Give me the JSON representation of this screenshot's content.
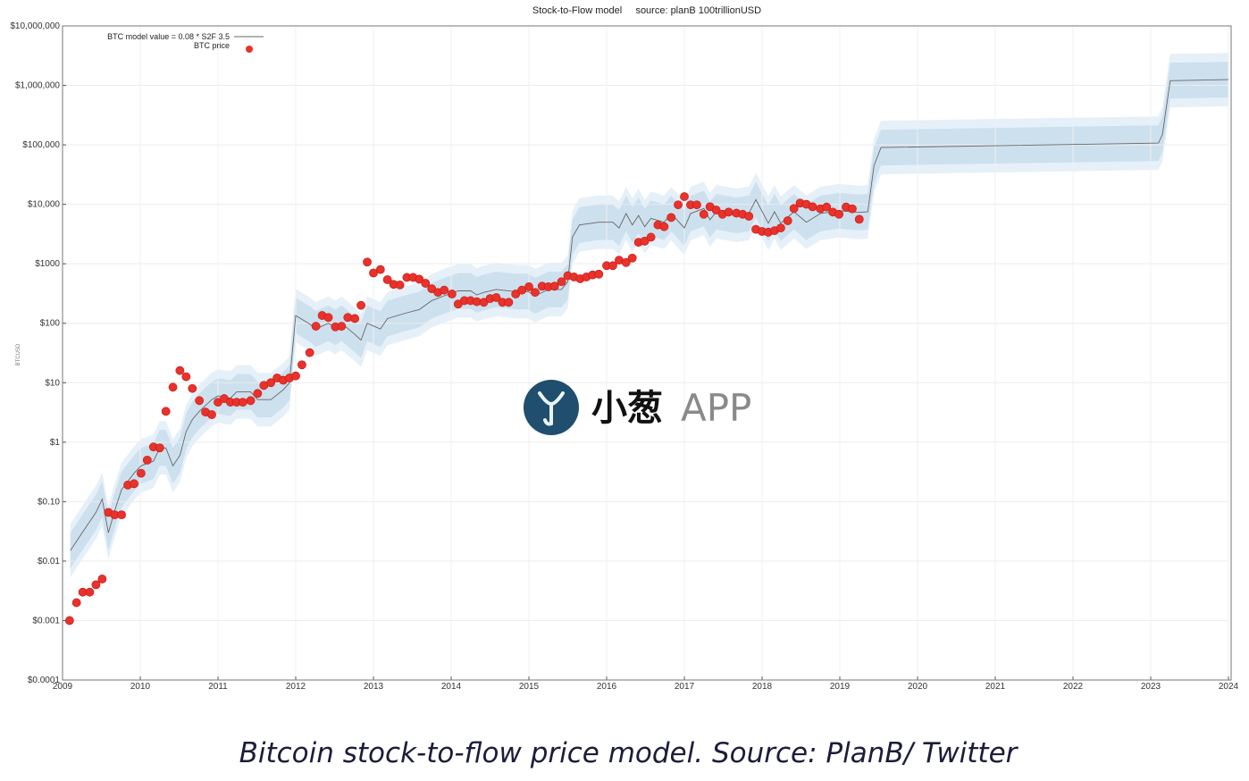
{
  "chart_data": {
    "type": "scatter",
    "title": "Stock-to-Flow model     source: planB 100trillionUSD",
    "y_label": "BTCUSD",
    "log_y": true,
    "grid": true,
    "legend": "top-left",
    "xlim": [
      2009,
      2024
    ],
    "xticks": [
      2009,
      2010,
      2011,
      2012,
      2013,
      2014,
      2015,
      2016,
      2017,
      2018,
      2019,
      2020,
      2021,
      2022,
      2023,
      2024
    ],
    "ylim": [
      0.0001,
      10000000
    ],
    "yticks": [
      {
        "value": 0.0001,
        "label": "$0.0001"
      },
      {
        "value": 0.001,
        "label": "$0.001"
      },
      {
        "value": 0.01,
        "label": "$0.01"
      },
      {
        "value": 0.1,
        "label": "$0.10"
      },
      {
        "value": 1,
        "label": "$1"
      },
      {
        "value": 10,
        "label": "$10"
      },
      {
        "value": 100,
        "label": "$100"
      },
      {
        "value": 1000,
        "label": "$1000"
      },
      {
        "value": 10000,
        "label": "$10,000"
      },
      {
        "value": 100000,
        "label": "$100,000"
      },
      {
        "value": 1000000,
        "label": "$1,000,000"
      },
      {
        "value": 10000000,
        "label": "$10,000,000"
      }
    ],
    "bands": [
      {
        "sigma_decades": 0.45,
        "color": "#e6f0f9"
      },
      {
        "sigma_decades": 0.3,
        "color": "#cde0ee"
      }
    ],
    "series": [
      {
        "name": "BTC model value = 0.08 * S2F  3.5",
        "style": "line",
        "color": "#666666",
        "x": [
          2009.1,
          2009.26,
          2009.43,
          2009.51,
          2009.59,
          2009.67,
          2009.76,
          2009.92,
          2010.01,
          2010.17,
          2010.25,
          2010.33,
          2010.42,
          2010.51,
          2010.59,
          2010.67,
          2010.76,
          2010.92,
          2011.0,
          2011.16,
          2011.24,
          2011.42,
          2011.51,
          2011.68,
          2011.84,
          2011.92,
          2012.0,
          2012.18,
          2012.26,
          2012.42,
          2012.51,
          2012.59,
          2012.76,
          2012.84,
          2012.92,
          2013.09,
          2013.18,
          2013.43,
          2013.59,
          2013.75,
          2013.91,
          2014.09,
          2014.25,
          2014.33,
          2014.42,
          2014.58,
          2014.83,
          2014.99,
          2015.08,
          2015.25,
          2015.42,
          2015.5,
          2015.56,
          2015.65,
          2015.9,
          2016.08,
          2016.16,
          2016.25,
          2016.33,
          2016.41,
          2016.49,
          2016.57,
          2016.74,
          2016.83,
          2017.0,
          2017.08,
          2017.25,
          2017.33,
          2017.41,
          2017.67,
          2017.83,
          2017.92,
          2018.08,
          2018.16,
          2018.24,
          2018.41,
          2018.57,
          2018.75,
          2018.99,
          2019.25,
          2019.36,
          2019.44,
          2019.53,
          2023.1,
          2023.15,
          2023.25,
          2024.0
        ],
        "values": [
          0.015,
          0.031,
          0.066,
          0.11,
          0.03,
          0.07,
          0.16,
          0.3,
          0.4,
          0.48,
          0.8,
          0.8,
          0.4,
          0.6,
          1.5,
          2.4,
          3.3,
          5.2,
          6,
          5.5,
          7,
          7,
          5.2,
          5.2,
          7.6,
          10,
          135,
          97,
          80,
          100,
          85,
          100,
          65,
          52,
          100,
          80,
          120,
          150,
          170,
          240,
          290,
          350,
          350,
          300,
          330,
          370,
          340,
          340,
          290,
          370,
          370,
          500,
          2800,
          4500,
          5000,
          5000,
          4000,
          7000,
          4500,
          6500,
          4200,
          5800,
          5000,
          7000,
          4000,
          7000,
          8500,
          5500,
          7500,
          6500,
          7000,
          12000,
          4800,
          7500,
          4800,
          7500,
          5000,
          7000,
          7800,
          7300,
          7500,
          45000,
          90000,
          107000,
          150000,
          1200000,
          1250000
        ]
      },
      {
        "name": "BTC price",
        "style": "dots",
        "color": "#e8322b",
        "x": [
          2009.09,
          2009.18,
          2009.26,
          2009.35,
          2009.43,
          2009.51,
          2009.59,
          2009.67,
          2009.76,
          2009.84,
          2009.92,
          2010.01,
          2010.09,
          2010.17,
          2010.25,
          2010.33,
          2010.42,
          2010.51,
          2010.59,
          2010.67,
          2010.76,
          2010.84,
          2010.92,
          2011.0,
          2011.08,
          2011.16,
          2011.24,
          2011.32,
          2011.42,
          2011.51,
          2011.59,
          2011.68,
          2011.76,
          2011.84,
          2011.92,
          2012.0,
          2012.08,
          2012.18,
          2012.26,
          2012.34,
          2012.42,
          2012.51,
          2012.59,
          2012.67,
          2012.76,
          2012.84,
          2012.92,
          2013.0,
          2013.09,
          2013.18,
          2013.26,
          2013.34,
          2013.43,
          2013.51,
          2013.59,
          2013.67,
          2013.75,
          2013.83,
          2013.91,
          2014.01,
          2014.09,
          2014.17,
          2014.25,
          2014.33,
          2014.42,
          2014.5,
          2014.58,
          2014.66,
          2014.74,
          2014.83,
          2014.91,
          2015.0,
          2015.08,
          2015.17,
          2015.25,
          2015.33,
          2015.42,
          2015.5,
          2015.58,
          2015.66,
          2015.74,
          2015.82,
          2015.9,
          2016.0,
          2016.08,
          2016.16,
          2016.25,
          2016.33,
          2016.41,
          2016.49,
          2016.57,
          2016.66,
          2016.74,
          2016.83,
          2016.92,
          2017.0,
          2017.08,
          2017.16,
          2017.25,
          2017.33,
          2017.41,
          2017.49,
          2017.57,
          2017.67,
          2017.75,
          2017.83,
          2017.92,
          2018.0,
          2018.08,
          2018.16,
          2018.24,
          2018.33,
          2018.41,
          2018.49,
          2018.57,
          2018.65,
          2018.75,
          2018.83,
          2018.91,
          2018.99,
          2019.08,
          2019.16,
          2019.25
        ],
        "values": [
          0.001,
          0.002,
          0.003,
          0.003,
          0.004,
          0.005,
          0.066,
          0.06,
          0.06,
          0.19,
          0.2,
          0.3,
          0.5,
          0.83,
          0.8,
          3.3,
          8.4,
          16,
          12.6,
          8,
          5,
          3.2,
          2.9,
          4.7,
          5.4,
          4.7,
          4.7,
          4.7,
          5,
          6.6,
          9,
          10,
          12,
          11,
          12,
          13,
          20,
          32,
          89,
          135,
          125,
          87,
          89,
          125,
          120,
          200,
          1070,
          700,
          800,
          540,
          450,
          440,
          590,
          590,
          550,
          470,
          380,
          330,
          360,
          310,
          210,
          240,
          240,
          230,
          225,
          260,
          270,
          225,
          225,
          310,
          360,
          410,
          330,
          420,
          410,
          420,
          500,
          630,
          600,
          560,
          600,
          650,
          670,
          930,
          930,
          1150,
          1050,
          1250,
          2300,
          2400,
          2800,
          4500,
          4200,
          6000,
          9800,
          13500,
          9800,
          9800,
          6800,
          9100,
          8000,
          6800,
          7400,
          7100,
          6800,
          6300,
          3800,
          3500,
          3400,
          3600,
          4000,
          5300,
          8500,
          10500,
          10000,
          9100,
          8400,
          9000,
          7400,
          6800,
          9000,
          8400,
          5600
        ]
      }
    ]
  },
  "watermark": {
    "brand": "小葱",
    "app": "APP"
  },
  "caption": "Bitcoin stock-to-flow price model. Source: PlanB/ Twitter"
}
